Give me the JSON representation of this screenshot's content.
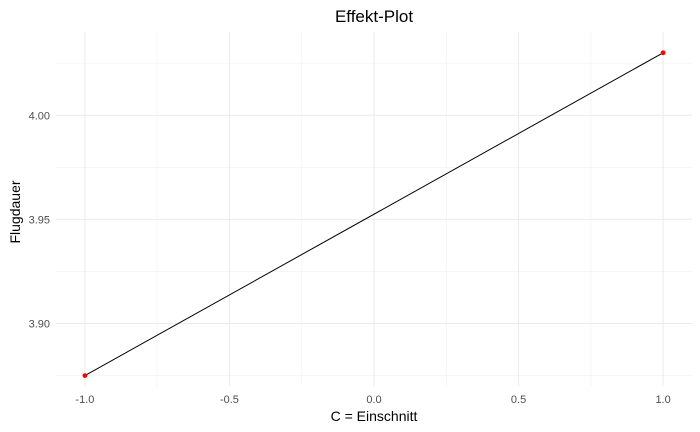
{
  "chart_data": {
    "type": "line",
    "title": "Effekt-Plot",
    "xlabel": "C = Einschnitt",
    "ylabel": "Flugdauer",
    "x": [
      -1.0,
      1.0
    ],
    "y": [
      3.875,
      4.03
    ],
    "xlim": [
      -1.1,
      1.1
    ],
    "ylim": [
      3.87,
      4.04
    ],
    "xticks": [
      -1.0,
      -0.5,
      0.0,
      0.5,
      1.0
    ],
    "xtick_labels": [
      "-1.0",
      "-0.5",
      "0.0",
      "0.5",
      "1.0"
    ],
    "yticks": [
      3.9,
      3.95,
      4.0
    ],
    "ytick_labels": [
      "3.90",
      "3.95",
      "4.00"
    ],
    "grid": true,
    "line_color": "#000000",
    "point_color": "#ff0000"
  }
}
